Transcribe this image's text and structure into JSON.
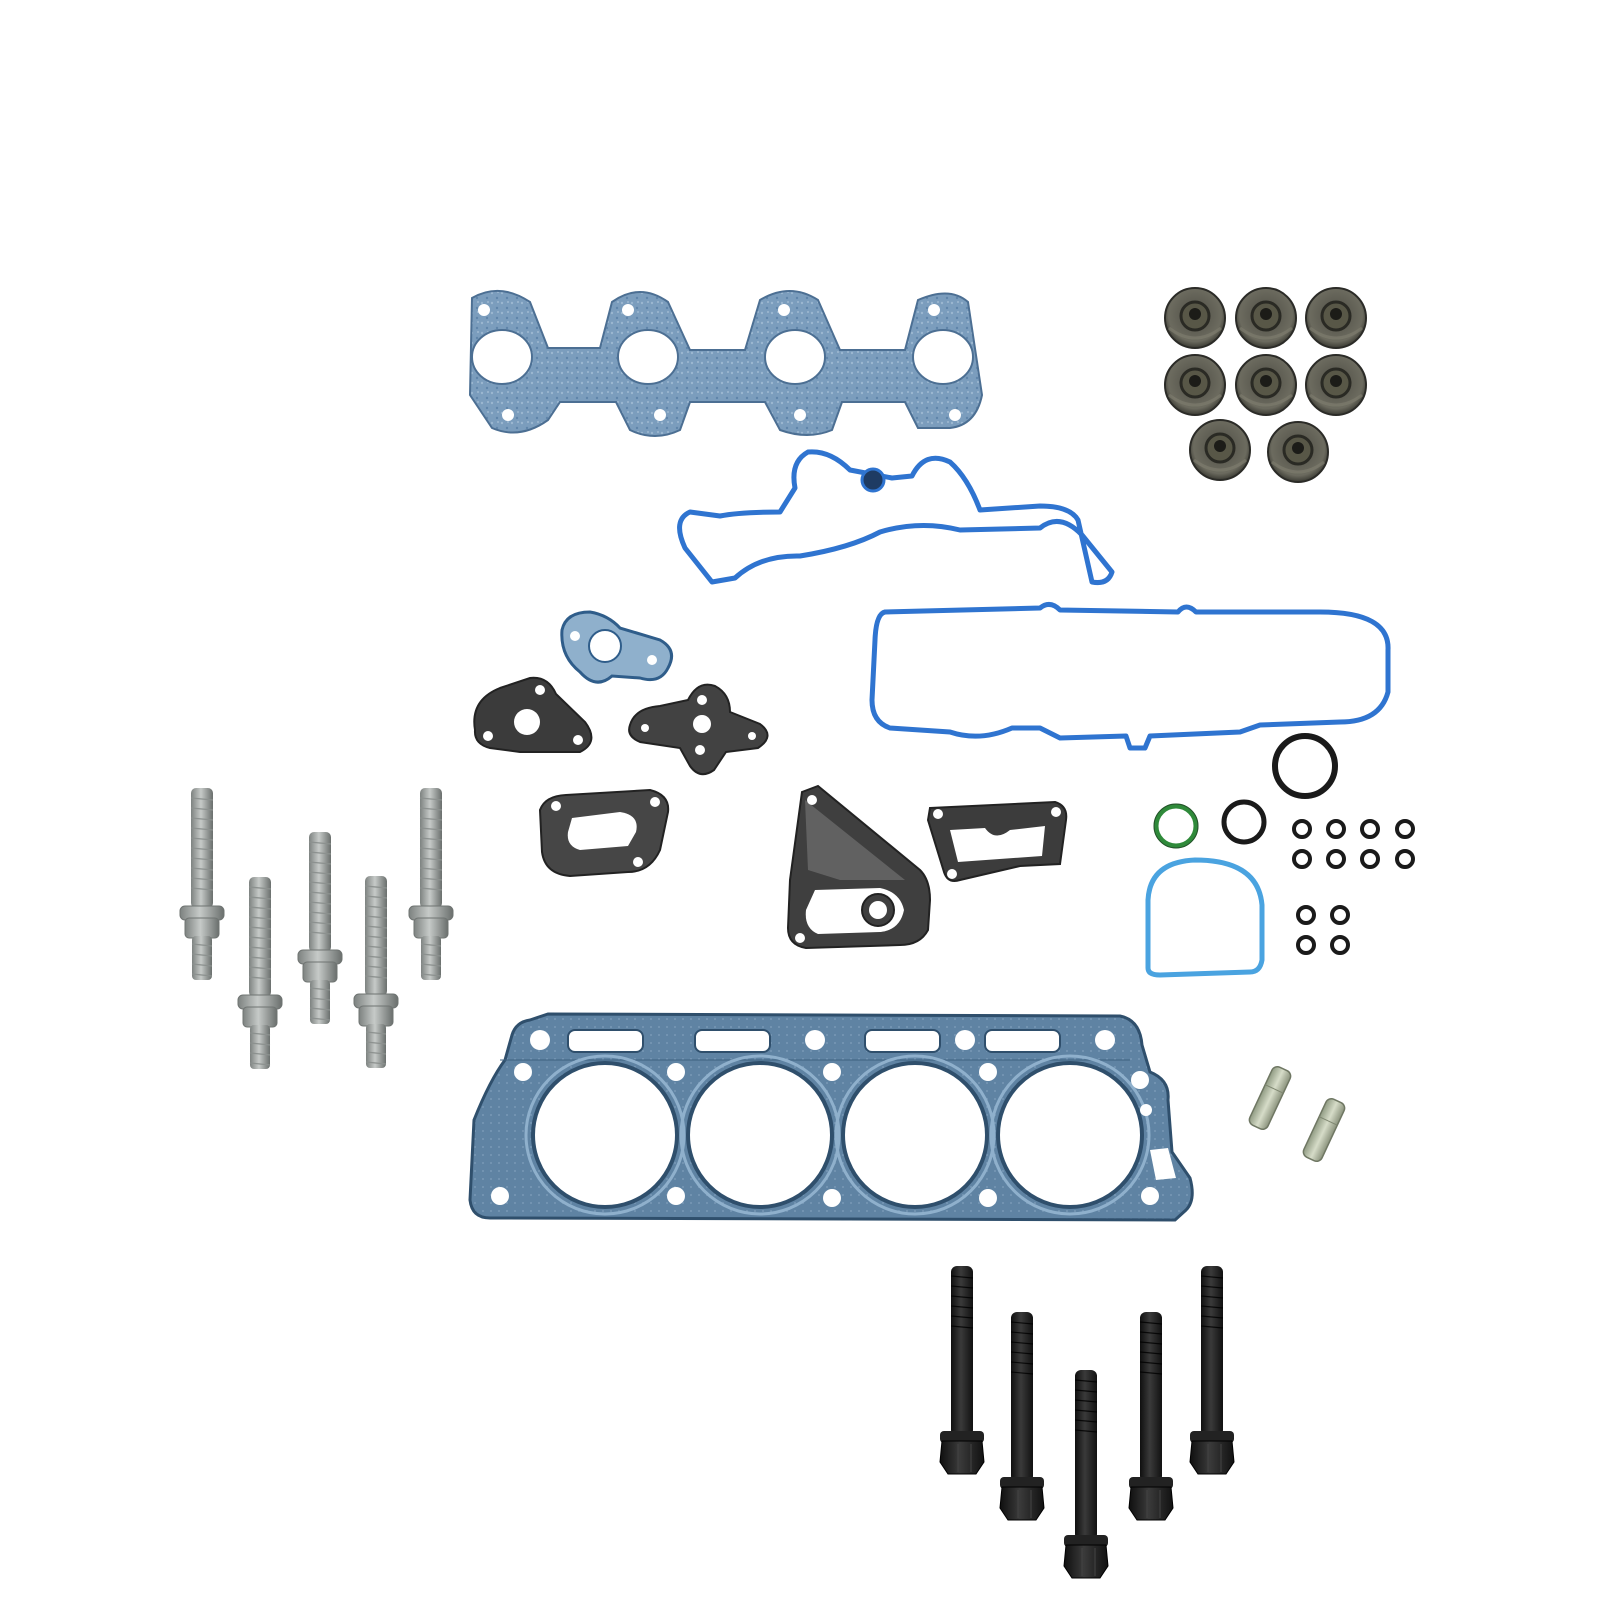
{
  "colors": {
    "background": "#ffffff",
    "fiber_blue": "#6f93b5",
    "fiber_light": "#9bb7d0",
    "fiber_outline": "#4c6f93",
    "seal_blue": "#2f74d0",
    "seal_blue_dark": "#1e5bb0",
    "black_gasket": "#3b3b3b",
    "black_gasket_light": "#5a5a5a",
    "steel_blue": "#5c7f9f",
    "steel_blue_light": "#7fa0bf",
    "stud_silver": "#a7acaa",
    "stud_shadow": "#6f7472",
    "bolt_black": "#1c1c1c",
    "valve_seal": "#4a4a42",
    "oring_green": "#2f8a3a",
    "light_blue_seal": "#4aa3e0"
  },
  "scene": {
    "description_icon": "gasket-kit-icon",
    "counts": {
      "valve_stem_seals": 8,
      "silver_studs": 5,
      "black_head_bolts": 5,
      "small_orings": 12,
      "dowel_pins": 2
    }
  }
}
